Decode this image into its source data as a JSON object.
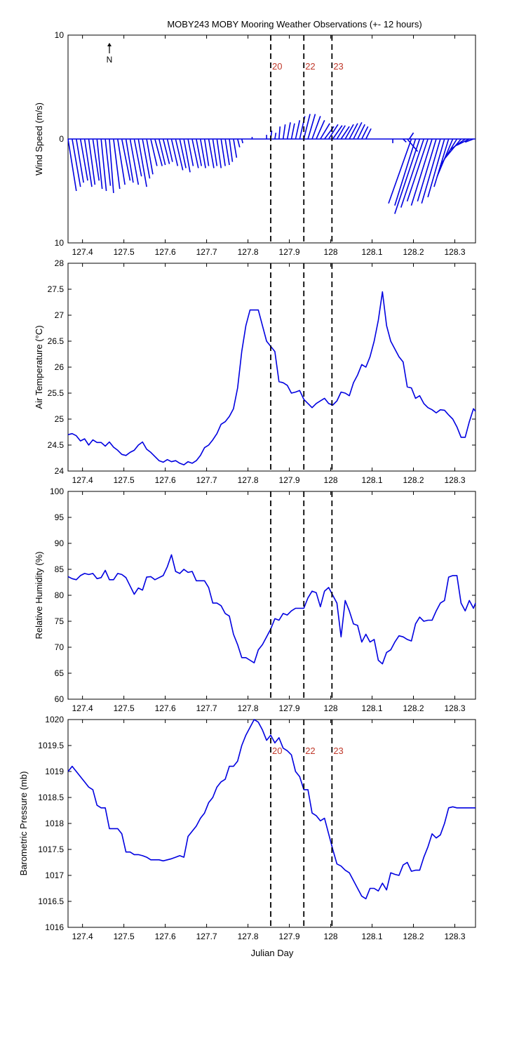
{
  "figure": {
    "title": "MOBY243 MOBY Mooring Weather Observations (+- 12 hours)",
    "xlabel": "Julian Day",
    "north_label": "N",
    "event_lines": [
      {
        "x": 127.855,
        "label": "20"
      },
      {
        "x": 127.935,
        "label": "22"
      },
      {
        "x": 128.003,
        "label": "23"
      }
    ]
  },
  "chart_data": [
    {
      "type": "quiver",
      "ylabel": "Wind Speed (m/s)",
      "xlim": [
        127.365,
        128.35
      ],
      "ylim": [
        -10,
        10
      ],
      "yticks": [
        10,
        0,
        10
      ],
      "xticks": [
        127.4,
        127.5,
        127.6,
        127.7,
        127.8,
        127.9,
        128,
        128.1,
        128.2,
        128.3
      ],
      "show_event_labels": true,
      "vectors": [
        {
          "x": 127.365,
          "u": 0.8,
          "v": -5.0
        },
        {
          "x": 127.375,
          "u": 0.8,
          "v": -4.6
        },
        {
          "x": 127.385,
          "u": 0.7,
          "v": -4.2
        },
        {
          "x": 127.395,
          "u": 0.7,
          "v": -4.0
        },
        {
          "x": 127.405,
          "u": 0.7,
          "v": -4.6
        },
        {
          "x": 127.415,
          "u": 0.6,
          "v": -4.4
        },
        {
          "x": 127.425,
          "u": 0.6,
          "v": -4.0
        },
        {
          "x": 127.435,
          "u": 0.5,
          "v": -4.8
        },
        {
          "x": 127.445,
          "u": 0.5,
          "v": -5.0
        },
        {
          "x": 127.455,
          "u": 0.5,
          "v": -4.5
        },
        {
          "x": 127.465,
          "u": 0.4,
          "v": -5.2
        },
        {
          "x": 127.475,
          "u": 0.6,
          "v": -4.8
        },
        {
          "x": 127.485,
          "u": 0.7,
          "v": -4.4
        },
        {
          "x": 127.495,
          "u": 0.8,
          "v": -4.0
        },
        {
          "x": 127.505,
          "u": 0.7,
          "v": -4.2
        },
        {
          "x": 127.515,
          "u": 0.8,
          "v": -4.4
        },
        {
          "x": 127.525,
          "u": 0.7,
          "v": -3.6
        },
        {
          "x": 127.535,
          "u": 0.8,
          "v": -4.6
        },
        {
          "x": 127.545,
          "u": 0.7,
          "v": -3.8
        },
        {
          "x": 127.555,
          "u": 0.6,
          "v": -3.4
        },
        {
          "x": 127.565,
          "u": 0.6,
          "v": -2.6
        },
        {
          "x": 127.575,
          "u": 0.7,
          "v": -2.6
        },
        {
          "x": 127.585,
          "u": 0.6,
          "v": -2.5
        },
        {
          "x": 127.595,
          "u": 0.6,
          "v": -2.4
        },
        {
          "x": 127.605,
          "u": 0.5,
          "v": -2.2
        },
        {
          "x": 127.615,
          "u": 0.6,
          "v": -2.6
        },
        {
          "x": 127.625,
          "u": 0.7,
          "v": -3.0
        },
        {
          "x": 127.635,
          "u": 0.6,
          "v": -2.8
        },
        {
          "x": 127.645,
          "u": 0.6,
          "v": -3.2
        },
        {
          "x": 127.655,
          "u": 0.5,
          "v": -2.6
        },
        {
          "x": 127.665,
          "u": 0.6,
          "v": -2.8
        },
        {
          "x": 127.675,
          "u": 0.5,
          "v": -2.6
        },
        {
          "x": 127.685,
          "u": 0.5,
          "v": -2.8
        },
        {
          "x": 127.695,
          "u": 0.4,
          "v": -2.6
        },
        {
          "x": 127.705,
          "u": 0.5,
          "v": -2.8
        },
        {
          "x": 127.715,
          "u": 0.4,
          "v": -2.6
        },
        {
          "x": 127.725,
          "u": 0.4,
          "v": -2.8
        },
        {
          "x": 127.735,
          "u": 0.4,
          "v": -2.6
        },
        {
          "x": 127.745,
          "u": 0.4,
          "v": -2.5
        },
        {
          "x": 127.755,
          "u": 0.3,
          "v": -2.2
        },
        {
          "x": 127.765,
          "u": 0.3,
          "v": -1.8
        },
        {
          "x": 127.775,
          "u": 0.2,
          "v": -0.8
        },
        {
          "x": 127.785,
          "u": 0.1,
          "v": -0.4
        },
        {
          "x": 127.81,
          "u": 0.0,
          "v": 0.2
        },
        {
          "x": 127.845,
          "u": 0.0,
          "v": 0.4
        },
        {
          "x": 127.855,
          "u": 0.1,
          "v": 0.8
        },
        {
          "x": 127.865,
          "u": 0.1,
          "v": 0.6
        },
        {
          "x": 127.875,
          "u": 0.1,
          "v": 1.2
        },
        {
          "x": 127.885,
          "u": 0.2,
          "v": 1.4
        },
        {
          "x": 127.895,
          "u": 0.3,
          "v": 1.6
        },
        {
          "x": 127.905,
          "u": 0.3,
          "v": 1.5
        },
        {
          "x": 127.915,
          "u": 0.4,
          "v": 1.8
        },
        {
          "x": 127.925,
          "u": 0.5,
          "v": 2.2
        },
        {
          "x": 127.935,
          "u": 0.6,
          "v": 2.4
        },
        {
          "x": 127.945,
          "u": 0.7,
          "v": 2.4
        },
        {
          "x": 127.955,
          "u": 0.8,
          "v": 2.2
        },
        {
          "x": 127.965,
          "u": 0.8,
          "v": 1.8
        },
        {
          "x": 127.975,
          "u": 0.9,
          "v": 1.5
        },
        {
          "x": 127.985,
          "u": 0.9,
          "v": 1.2
        },
        {
          "x": 127.995,
          "u": 0.9,
          "v": 1.4
        },
        {
          "x": 128.005,
          "u": 0.9,
          "v": 1.3
        },
        {
          "x": 128.015,
          "u": 0.8,
          "v": 1.3
        },
        {
          "x": 128.025,
          "u": 0.8,
          "v": 1.2
        },
        {
          "x": 128.035,
          "u": 0.8,
          "v": 1.4
        },
        {
          "x": 128.045,
          "u": 0.8,
          "v": 1.5
        },
        {
          "x": 128.055,
          "u": 0.8,
          "v": 1.6
        },
        {
          "x": 128.065,
          "u": 0.7,
          "v": 1.4
        },
        {
          "x": 128.075,
          "u": 0.6,
          "v": 1.2
        },
        {
          "x": 128.085,
          "u": 0.5,
          "v": 1.0
        },
        {
          "x": 128.15,
          "u": 0.0,
          "v": -0.4
        },
        {
          "x": 128.175,
          "u": 0.3,
          "v": -0.3
        },
        {
          "x": 128.185,
          "u": 1.0,
          "v": -1.2
        },
        {
          "x": 128.19,
          "u": 0.4,
          "v": 0.6
        },
        {
          "x": 128.195,
          "u": -2.2,
          "v": -6.2
        },
        {
          "x": 128.205,
          "u": -2.0,
          "v": -6.4
        },
        {
          "x": 128.215,
          "u": -2.4,
          "v": -7.2
        },
        {
          "x": 128.225,
          "u": -2.2,
          "v": -6.6
        },
        {
          "x": 128.235,
          "u": -2.0,
          "v": -6.0
        },
        {
          "x": 128.245,
          "u": -2.0,
          "v": -6.4
        },
        {
          "x": 128.255,
          "u": -1.8,
          "v": -6.0
        },
        {
          "x": 128.265,
          "u": -1.8,
          "v": -6.2
        },
        {
          "x": 128.275,
          "u": -1.6,
          "v": -5.6
        },
        {
          "x": 128.285,
          "u": -1.4,
          "v": -4.6
        },
        {
          "x": 128.295,
          "u": -1.5,
          "v": -3.6
        },
        {
          "x": 128.305,
          "u": -1.6,
          "v": -2.6
        },
        {
          "x": 128.315,
          "u": -1.5,
          "v": -1.8
        },
        {
          "x": 128.325,
          "u": -1.4,
          "v": -1.0
        },
        {
          "x": 128.335,
          "u": -1.2,
          "v": -0.6
        },
        {
          "x": 128.345,
          "u": -0.8,
          "v": -0.3
        }
      ]
    },
    {
      "type": "line",
      "ylabel": "Air Temperature (°C)",
      "xlim": [
        127.365,
        128.35
      ],
      "ylim": [
        24,
        28
      ],
      "yticks": [
        24,
        24.5,
        25,
        25.5,
        26,
        26.5,
        27,
        27.5,
        28
      ],
      "xticks": [
        127.4,
        127.5,
        127.6,
        127.7,
        127.8,
        127.9,
        128,
        128.1,
        128.2,
        128.3
      ],
      "show_event_labels": false,
      "x": [
        127.365,
        127.375,
        127.385,
        127.395,
        127.405,
        127.415,
        127.425,
        127.435,
        127.445,
        127.455,
        127.465,
        127.475,
        127.485,
        127.495,
        127.505,
        127.515,
        127.525,
        127.535,
        127.545,
        127.555,
        127.565,
        127.575,
        127.585,
        127.595,
        127.605,
        127.615,
        127.625,
        127.635,
        127.645,
        127.655,
        127.665,
        127.675,
        127.685,
        127.695,
        127.705,
        127.715,
        127.725,
        127.735,
        127.745,
        127.755,
        127.765,
        127.775,
        127.785,
        127.795,
        127.805,
        127.815,
        127.825,
        127.835,
        127.845,
        127.855,
        127.865,
        127.875,
        127.885,
        127.895,
        127.905,
        127.915,
        127.925,
        127.935,
        127.945,
        127.955,
        127.965,
        127.975,
        127.985,
        127.995,
        128.005,
        128.015,
        128.025,
        128.035,
        128.045,
        128.055,
        128.065,
        128.075,
        128.085,
        128.095,
        128.105,
        128.115,
        128.125,
        128.135,
        128.145,
        128.155,
        128.165,
        128.175,
        128.185,
        128.195,
        128.205,
        128.215,
        128.225,
        128.235,
        128.245,
        128.255,
        128.265,
        128.275,
        128.285,
        128.295,
        128.305,
        128.315,
        128.325,
        128.335,
        128.345,
        128.35
      ],
      "y": [
        24.7,
        24.72,
        24.68,
        24.58,
        24.62,
        24.5,
        24.6,
        24.55,
        24.55,
        24.48,
        24.56,
        24.46,
        24.4,
        24.32,
        24.3,
        24.36,
        24.4,
        24.5,
        24.56,
        24.42,
        24.36,
        24.28,
        24.2,
        24.17,
        24.22,
        24.18,
        24.2,
        24.15,
        24.12,
        24.18,
        24.15,
        24.2,
        24.3,
        24.45,
        24.5,
        24.6,
        24.72,
        24.9,
        24.95,
        25.05,
        25.2,
        25.6,
        26.3,
        26.8,
        27.1,
        27.1,
        27.1,
        26.8,
        26.5,
        26.4,
        26.3,
        25.72,
        25.7,
        25.65,
        25.5,
        25.52,
        25.55,
        25.38,
        25.3,
        25.22,
        25.3,
        25.35,
        25.4,
        25.3,
        25.27,
        25.35,
        25.52,
        25.5,
        25.45,
        25.7,
        25.85,
        26.05,
        26.0,
        26.2,
        26.5,
        26.9,
        27.45,
        26.8,
        26.5,
        26.35,
        26.2,
        26.1,
        25.62,
        25.6,
        25.4,
        25.45,
        25.3,
        25.22,
        25.18,
        25.12,
        25.18,
        25.17,
        25.08,
        25.0,
        24.85,
        24.65,
        24.65,
        24.95,
        25.2,
        25.15
      ]
    },
    {
      "type": "line",
      "ylabel": "Relative Humidity (%)",
      "xlim": [
        127.365,
        128.35
      ],
      "ylim": [
        60,
        100
      ],
      "yticks": [
        60,
        65,
        70,
        75,
        80,
        85,
        90,
        95,
        100
      ],
      "xticks": [
        127.4,
        127.5,
        127.6,
        127.7,
        127.8,
        127.9,
        128,
        128.1,
        128.2,
        128.3
      ],
      "show_event_labels": false,
      "x": [
        127.365,
        127.375,
        127.385,
        127.395,
        127.405,
        127.415,
        127.425,
        127.435,
        127.445,
        127.455,
        127.465,
        127.475,
        127.485,
        127.495,
        127.505,
        127.515,
        127.525,
        127.535,
        127.545,
        127.555,
        127.565,
        127.575,
        127.585,
        127.595,
        127.605,
        127.615,
        127.625,
        127.635,
        127.645,
        127.655,
        127.665,
        127.675,
        127.685,
        127.695,
        127.705,
        127.715,
        127.725,
        127.735,
        127.745,
        127.755,
        127.765,
        127.775,
        127.785,
        127.795,
        127.805,
        127.815,
        127.825,
        127.835,
        127.845,
        127.855,
        127.865,
        127.875,
        127.885,
        127.895,
        127.905,
        127.915,
        127.925,
        127.935,
        127.945,
        127.955,
        127.965,
        127.975,
        127.985,
        127.995,
        128.005,
        128.015,
        128.025,
        128.035,
        128.045,
        128.055,
        128.065,
        128.075,
        128.085,
        128.095,
        128.105,
        128.115,
        128.125,
        128.135,
        128.145,
        128.155,
        128.165,
        128.175,
        128.185,
        128.195,
        128.205,
        128.215,
        128.225,
        128.235,
        128.245,
        128.255,
        128.265,
        128.275,
        128.285,
        128.295,
        128.305,
        128.315,
        128.325,
        128.335,
        128.345,
        128.35
      ],
      "y": [
        83.6,
        83.2,
        83.0,
        83.8,
        84.2,
        84.0,
        84.2,
        83.2,
        83.4,
        84.8,
        83.0,
        83.0,
        84.2,
        84.0,
        83.4,
        81.8,
        80.2,
        81.4,
        81.0,
        83.5,
        83.6,
        83.0,
        83.4,
        83.8,
        85.5,
        87.8,
        84.6,
        84.2,
        85.0,
        84.4,
        84.6,
        82.8,
        82.8,
        82.8,
        81.5,
        78.5,
        78.5,
        78.0,
        76.5,
        76.0,
        72.5,
        70.5,
        68.0,
        68.0,
        67.5,
        67.0,
        69.5,
        70.5,
        72.0,
        73.5,
        75.5,
        75.2,
        76.5,
        76.2,
        77.0,
        77.5,
        77.5,
        77.5,
        79.5,
        80.8,
        80.5,
        77.8,
        80.8,
        81.5,
        80.0,
        78.5,
        72.0,
        79.0,
        77.0,
        74.5,
        74.2,
        71.0,
        72.5,
        71.0,
        71.5,
        67.5,
        66.8,
        69.0,
        69.5,
        71.0,
        72.2,
        72.0,
        71.5,
        71.2,
        74.5,
        75.8,
        75.0,
        75.2,
        75.2,
        77.0,
        78.5,
        79.0,
        83.5,
        83.8,
        83.8,
        78.5,
        77.0,
        79.0,
        77.5,
        78.5
      ]
    },
    {
      "type": "line",
      "ylabel": "Barometric Pressure (mb)",
      "xlim": [
        127.365,
        128.35
      ],
      "ylim": [
        1016,
        1020
      ],
      "yticks": [
        1016,
        1016.5,
        1017,
        1017.5,
        1018,
        1018.5,
        1019,
        1019.5,
        1020
      ],
      "xticks": [
        127.4,
        127.5,
        127.6,
        127.7,
        127.8,
        127.9,
        128,
        128.1,
        128.2,
        128.3
      ],
      "show_event_labels": true,
      "x": [
        127.365,
        127.375,
        127.385,
        127.395,
        127.405,
        127.415,
        127.425,
        127.435,
        127.445,
        127.455,
        127.465,
        127.475,
        127.485,
        127.495,
        127.505,
        127.515,
        127.525,
        127.535,
        127.545,
        127.555,
        127.565,
        127.575,
        127.585,
        127.595,
        127.605,
        127.615,
        127.625,
        127.635,
        127.645,
        127.655,
        127.665,
        127.675,
        127.685,
        127.695,
        127.705,
        127.715,
        127.725,
        127.735,
        127.745,
        127.755,
        127.765,
        127.775,
        127.785,
        127.795,
        127.805,
        127.815,
        127.825,
        127.835,
        127.845,
        127.855,
        127.865,
        127.875,
        127.885,
        127.895,
        127.905,
        127.915,
        127.925,
        127.935,
        127.945,
        127.955,
        127.965,
        127.975,
        127.985,
        127.995,
        128.005,
        128.015,
        128.025,
        128.035,
        128.045,
        128.055,
        128.065,
        128.075,
        128.085,
        128.095,
        128.105,
        128.115,
        128.125,
        128.135,
        128.145,
        128.155,
        128.165,
        128.175,
        128.185,
        128.195,
        128.205,
        128.215,
        128.225,
        128.235,
        128.245,
        128.255,
        128.265,
        128.275,
        128.285,
        128.295,
        128.305,
        128.315,
        128.325,
        128.335,
        128.345,
        128.35
      ],
      "y": [
        1019.0,
        1019.1,
        1019.0,
        1018.9,
        1018.8,
        1018.7,
        1018.65,
        1018.35,
        1018.3,
        1018.3,
        1017.9,
        1017.9,
        1017.9,
        1017.8,
        1017.45,
        1017.45,
        1017.4,
        1017.4,
        1017.38,
        1017.35,
        1017.3,
        1017.3,
        1017.3,
        1017.28,
        1017.3,
        1017.32,
        1017.35,
        1017.38,
        1017.35,
        1017.75,
        1017.85,
        1017.95,
        1018.1,
        1018.2,
        1018.4,
        1018.5,
        1018.7,
        1018.8,
        1018.85,
        1019.1,
        1019.1,
        1019.2,
        1019.5,
        1019.7,
        1019.85,
        1020.0,
        1019.95,
        1019.8,
        1019.6,
        1019.7,
        1019.55,
        1019.65,
        1019.45,
        1019.4,
        1019.32,
        1019.0,
        1018.9,
        1018.65,
        1018.65,
        1018.2,
        1018.15,
        1018.05,
        1018.1,
        1017.8,
        1017.5,
        1017.22,
        1017.18,
        1017.1,
        1017.05,
        1016.9,
        1016.75,
        1016.6,
        1016.55,
        1016.75,
        1016.75,
        1016.7,
        1016.85,
        1016.72,
        1017.05,
        1017.02,
        1017.0,
        1017.2,
        1017.25,
        1017.08,
        1017.1,
        1017.1,
        1017.35,
        1017.55,
        1017.8,
        1017.72,
        1017.78,
        1018.0,
        1018.3,
        1018.32,
        1018.3,
        1018.3,
        1018.3,
        1018.3,
        1018.3,
        1018.3
      ]
    }
  ]
}
